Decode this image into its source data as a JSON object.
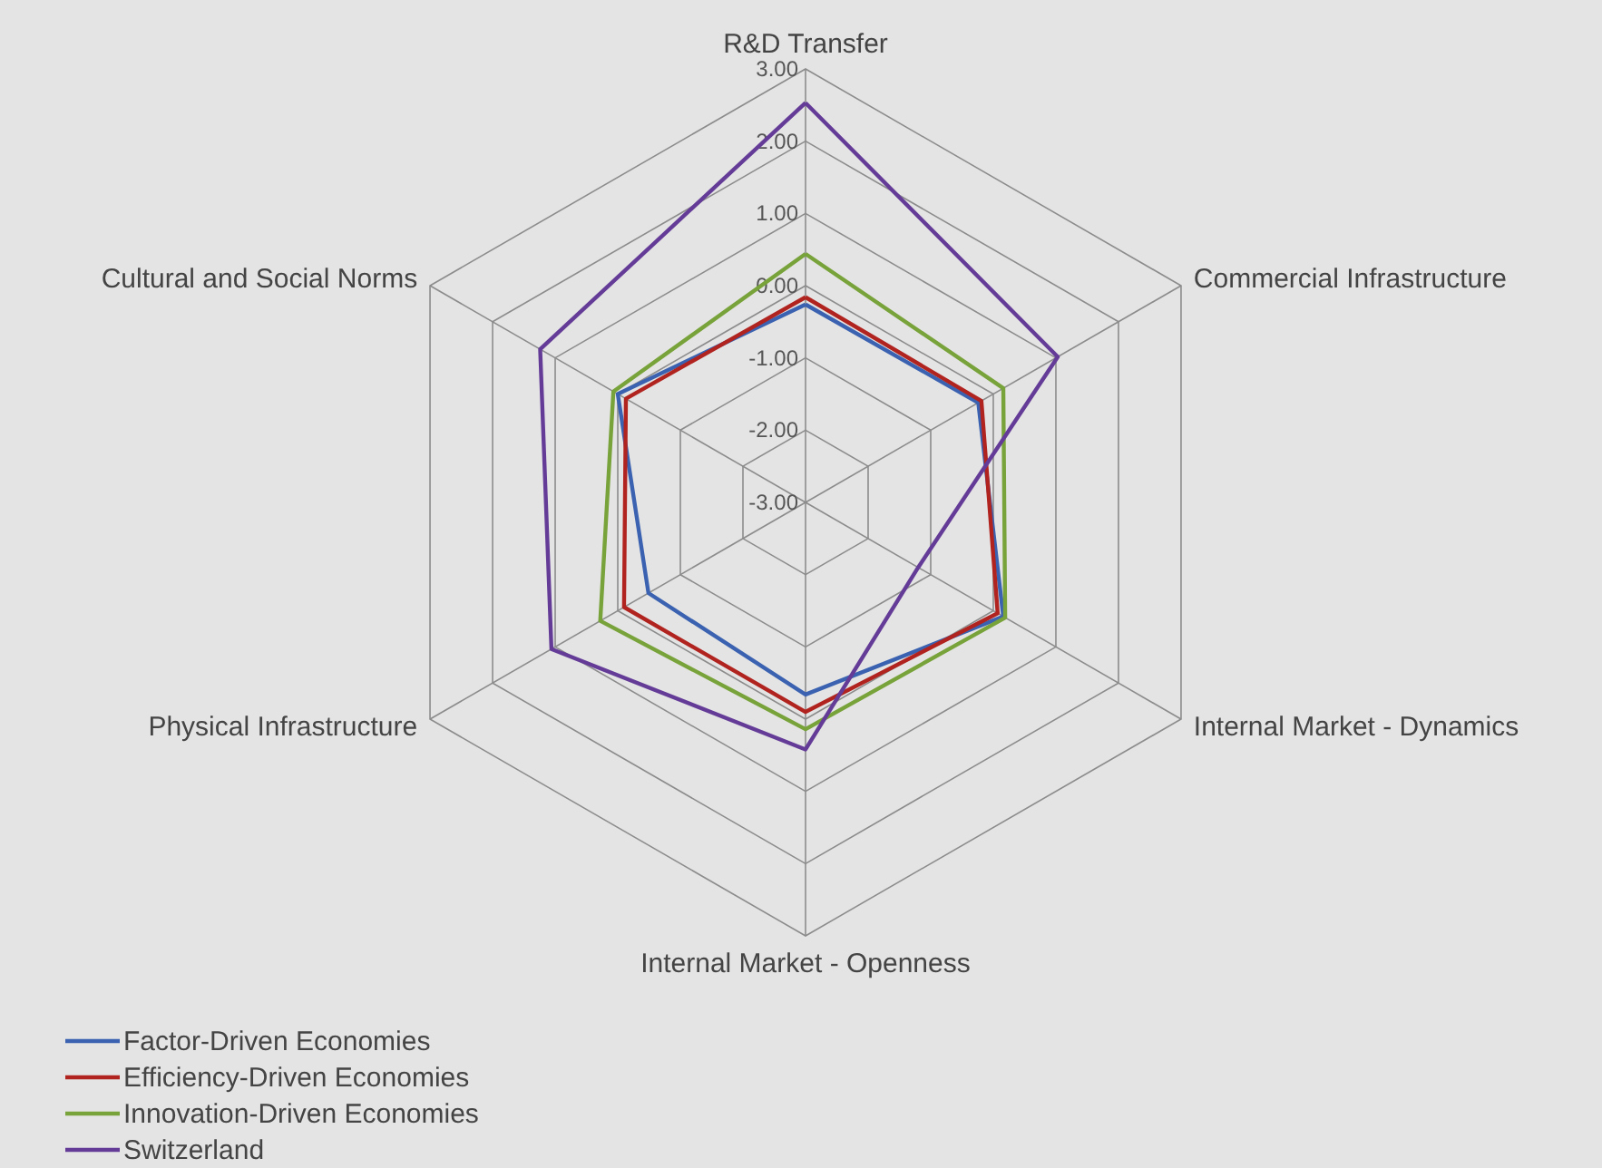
{
  "chart_data": {
    "type": "radar",
    "categories": [
      "R&D Transfer",
      "Commercial Infrastructure",
      "Internal Market - Dynamics",
      "Internal Market - Openness",
      "Physical Infrastructure",
      "Cultural and Social Norms"
    ],
    "series": [
      {
        "name": "Factor-Driven Economies",
        "color": "#3a62b0",
        "values": [
          -0.26,
          -0.24,
          0.16,
          -0.34,
          -0.49,
          0.0
        ]
      },
      {
        "name": "Efficiency-Driven Economies",
        "color": "#b0231f",
        "values": [
          -0.16,
          -0.19,
          0.07,
          -0.1,
          -0.1,
          -0.13
        ]
      },
      {
        "name": "Innovation-Driven Economies",
        "color": "#78a23a",
        "values": [
          0.44,
          0.16,
          0.19,
          0.14,
          0.28,
          0.07
        ]
      },
      {
        "name": "Switzerland",
        "color": "#643c98",
        "values": [
          2.53,
          1.03,
          -1.2,
          0.42,
          1.06,
          1.24
        ]
      }
    ],
    "ylim": [
      -3,
      3
    ],
    "yticks": [
      {
        "value": -3,
        "label": "-3.00"
      },
      {
        "value": -2,
        "label": "-2.00"
      },
      {
        "value": -1,
        "label": "-1.00"
      },
      {
        "value": 0,
        "label": "0.00"
      },
      {
        "value": 1,
        "label": "1.00"
      },
      {
        "value": 2,
        "label": "2.00"
      },
      {
        "value": 3,
        "label": "3.00"
      }
    ],
    "grid": true,
    "legend": "bottom left",
    "line_style": "solid"
  }
}
